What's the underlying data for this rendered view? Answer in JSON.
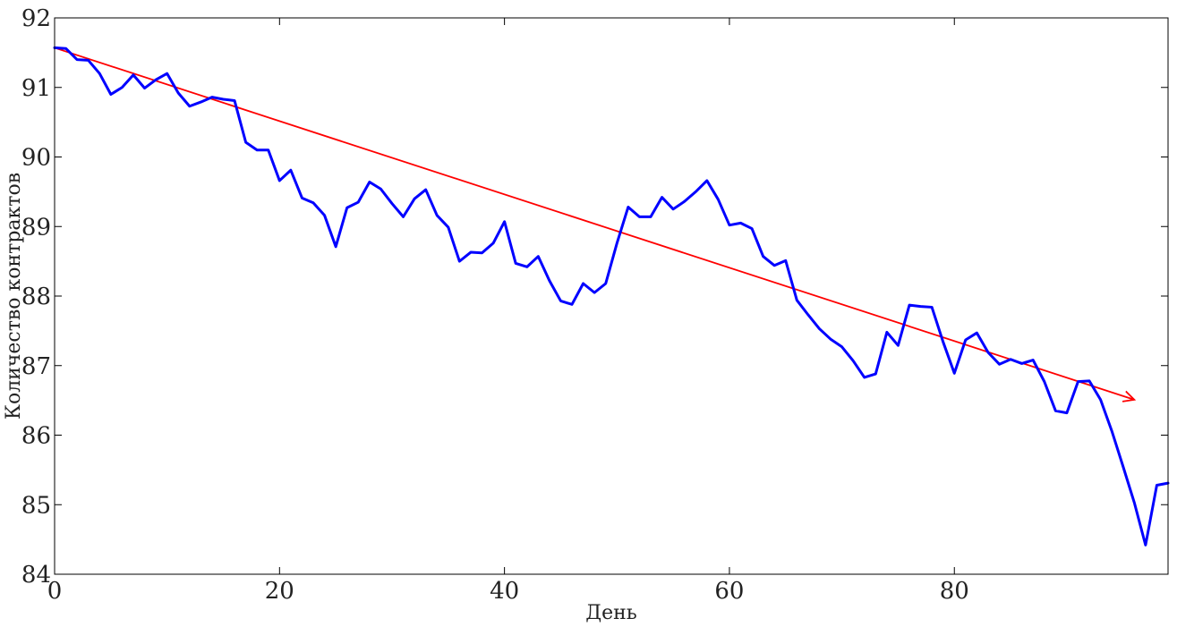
{
  "chart_data": {
    "type": "line",
    "title": "",
    "xlabel": "День",
    "ylabel": "Количество контрактов",
    "xlim": [
      0,
      99
    ],
    "ylim": [
      84,
      92
    ],
    "grid": false,
    "x_ticks": [
      0,
      20,
      40,
      60,
      80
    ],
    "x_tick_labels": [
      "0",
      "20",
      "40",
      "60",
      "80"
    ],
    "y_ticks": [
      84,
      85,
      86,
      87,
      88,
      89,
      90,
      91,
      92
    ],
    "y_tick_labels": [
      "84",
      "85",
      "86",
      "87",
      "88",
      "89",
      "90",
      "91",
      "92"
    ],
    "series": [
      {
        "color": "#0000ff",
        "x": [
          0,
          1,
          2,
          3,
          4,
          5,
          6,
          7,
          8,
          9,
          10,
          11,
          12,
          13,
          14,
          15,
          16,
          17,
          18,
          19,
          20,
          21,
          22,
          23,
          24,
          25,
          26,
          27,
          28,
          29,
          30,
          31,
          32,
          33,
          34,
          35,
          36,
          37,
          38,
          39,
          40,
          41,
          42,
          43,
          44,
          45,
          46,
          47,
          48,
          49,
          50,
          51,
          52,
          53,
          54,
          55,
          56,
          57,
          58,
          59,
          60,
          61,
          62,
          63,
          64,
          65,
          66,
          67,
          68,
          69,
          70,
          71,
          72,
          73,
          74,
          75,
          76,
          77,
          78,
          79,
          80,
          81,
          82,
          83,
          84,
          85,
          86,
          87,
          88,
          89,
          90,
          91,
          92,
          93,
          94,
          95,
          96,
          97,
          98,
          99
        ],
        "values": [
          91.57,
          91.56,
          91.4,
          91.39,
          91.2,
          90.9,
          91.0,
          91.18,
          90.99,
          91.11,
          91.2,
          90.92,
          90.73,
          90.79,
          90.86,
          90.83,
          90.81,
          90.21,
          90.1,
          90.1,
          89.66,
          89.81,
          89.41,
          89.34,
          89.16,
          88.71,
          89.27,
          89.35,
          89.64,
          89.54,
          89.33,
          89.14,
          89.4,
          89.53,
          89.16,
          88.99,
          88.5,
          88.63,
          88.62,
          88.76,
          89.07,
          88.47,
          88.42,
          88.57,
          88.22,
          87.93,
          87.88,
          88.18,
          88.05,
          88.18,
          88.76,
          89.28,
          89.14,
          89.14,
          89.42,
          89.25,
          89.36,
          89.5,
          89.66,
          89.39,
          89.02,
          89.05,
          88.97,
          88.57,
          88.44,
          88.51,
          87.94,
          87.73,
          87.53,
          87.38,
          87.27,
          87.07,
          86.83,
          86.88,
          87.48,
          87.29,
          87.87,
          87.85,
          87.84,
          87.34,
          86.89,
          87.37,
          87.47,
          87.19,
          87.02,
          87.09,
          87.03,
          87.08,
          86.77,
          86.35,
          86.32,
          86.77,
          86.78,
          86.51,
          86.06,
          85.55,
          85.03,
          84.42,
          85.28,
          85.31
        ]
      }
    ],
    "annotations": [
      {
        "type": "arrow",
        "color": "#ff0000",
        "from": [
          0,
          91.57
        ],
        "to": [
          96,
          86.51
        ]
      }
    ]
  }
}
